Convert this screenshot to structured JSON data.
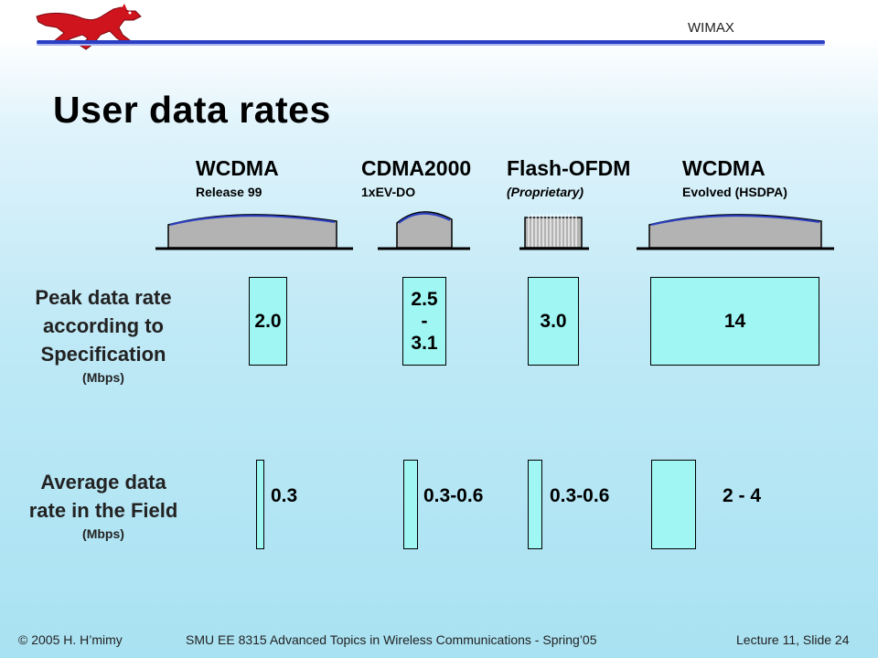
{
  "header": {
    "topic": "WIMAX",
    "logo": "mustang-logo"
  },
  "title": "User data rates",
  "technologies": [
    {
      "name": "WCDMA",
      "sub": "Release 99",
      "sub_italic": false
    },
    {
      "name": "CDMA2000",
      "sub": "1xEV-DO",
      "sub_italic": false
    },
    {
      "name": "Flash-OFDM",
      "sub": "(Proprietary)",
      "sub_italic": true
    },
    {
      "name": "WCDMA",
      "sub": "Evolved (HSDPA)",
      "sub_italic": false
    }
  ],
  "rows": {
    "peak": {
      "label_lines": [
        "Peak data rate",
        "according to",
        "Specification"
      ],
      "unit": "(Mbps)",
      "values": [
        "2.0",
        "2.5\n-\n3.1",
        "3.0",
        "14"
      ]
    },
    "average": {
      "label_lines": [
        "Average data",
        "rate in the Field"
      ],
      "unit": "(Mbps)",
      "values": [
        "0.3",
        "0.3-0.6",
        "0.3-0.6",
        "2 - 4"
      ]
    }
  },
  "footer": {
    "left": "© 2005 H. H’mimy",
    "center": "SMU EE 8315 Advanced Topics in Wireless Communications - Spring’05",
    "right": "Lecture 11, Slide 24"
  },
  "colors": {
    "accent_rule": "#2b3fc4",
    "box_fill": "#9ff6f2",
    "spectrum_fill": "#b3b3b3",
    "logo_red": "#d0141e"
  }
}
